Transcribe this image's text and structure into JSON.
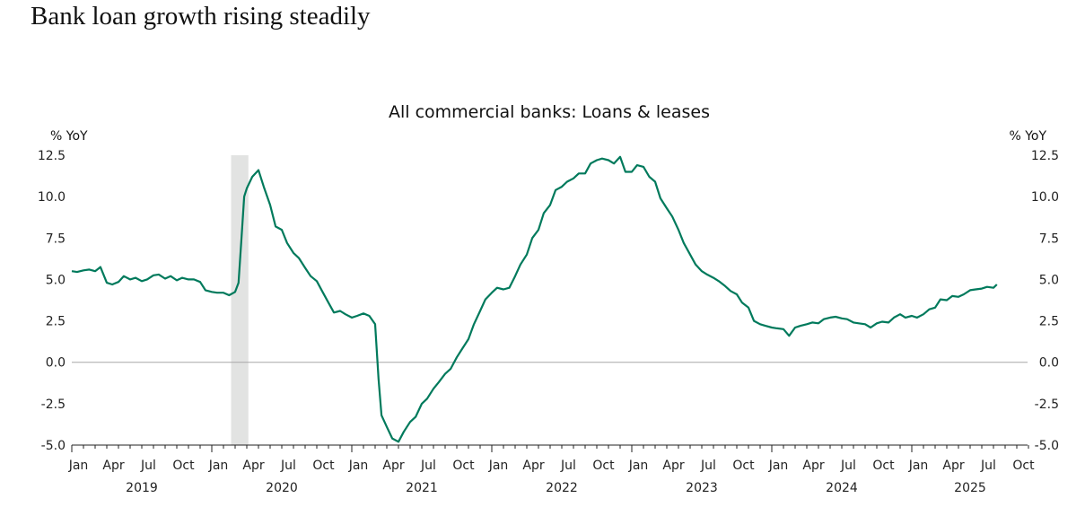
{
  "headline": "Bank loan growth rising steadily",
  "chart_data": {
    "type": "line",
    "title": "All commercial banks: Loans & leases",
    "ylabel_left": "% YoY",
    "ylabel_right": "% YoY",
    "ylim": [
      -5.0,
      12.5
    ],
    "yticks": [
      "12.5",
      "10.0",
      "7.5",
      "5.0",
      "2.5",
      "0.0",
      "-2.5",
      "-5.0"
    ],
    "xlim": [
      "2019-01-01",
      "2025-10-31"
    ],
    "month_labels": [
      "Jan",
      "Apr",
      "Jul",
      "Oct"
    ],
    "year_labels": [
      "2019",
      "2020",
      "2021",
      "2022",
      "2023",
      "2024",
      "2025"
    ],
    "grid": false,
    "zero_line": true,
    "line_color": "#007a5c",
    "shade_color": "#e2e3e2",
    "recession_shading": [
      "2020-02-20",
      "2020-04-05"
    ],
    "series": [
      {
        "points": [
          [
            "2019-01-01",
            5.5
          ],
          [
            "2019-01-15",
            5.45
          ],
          [
            "2019-02-01",
            5.55
          ],
          [
            "2019-02-15",
            5.6
          ],
          [
            "2019-03-01",
            5.5
          ],
          [
            "2019-03-15",
            5.75
          ],
          [
            "2019-04-01",
            4.8
          ],
          [
            "2019-04-15",
            4.7
          ],
          [
            "2019-05-01",
            4.85
          ],
          [
            "2019-05-15",
            5.2
          ],
          [
            "2019-06-01",
            5.0
          ],
          [
            "2019-06-15",
            5.1
          ],
          [
            "2019-07-01",
            4.9
          ],
          [
            "2019-07-15",
            5.0
          ],
          [
            "2019-08-01",
            5.25
          ],
          [
            "2019-08-15",
            5.3
          ],
          [
            "2019-09-01",
            5.05
          ],
          [
            "2019-09-15",
            5.2
          ],
          [
            "2019-10-01",
            4.95
          ],
          [
            "2019-10-15",
            5.1
          ],
          [
            "2019-11-01",
            5.0
          ],
          [
            "2019-11-15",
            5.0
          ],
          [
            "2019-12-01",
            4.85
          ],
          [
            "2019-12-15",
            4.35
          ],
          [
            "2020-01-01",
            4.25
          ],
          [
            "2020-01-15",
            4.2
          ],
          [
            "2020-02-01",
            4.2
          ],
          [
            "2020-02-15",
            4.05
          ],
          [
            "2020-03-01",
            4.25
          ],
          [
            "2020-03-10",
            4.8
          ],
          [
            "2020-03-18",
            7.5
          ],
          [
            "2020-03-25",
            10.0
          ],
          [
            "2020-04-01",
            10.5
          ],
          [
            "2020-04-15",
            11.2
          ],
          [
            "2020-05-01",
            11.6
          ],
          [
            "2020-05-15",
            10.6
          ],
          [
            "2020-06-01",
            9.5
          ],
          [
            "2020-06-15",
            8.2
          ],
          [
            "2020-07-01",
            8.0
          ],
          [
            "2020-07-15",
            7.2
          ],
          [
            "2020-08-01",
            6.6
          ],
          [
            "2020-08-15",
            6.3
          ],
          [
            "2020-09-01",
            5.7
          ],
          [
            "2020-09-15",
            5.2
          ],
          [
            "2020-10-01",
            4.9
          ],
          [
            "2020-10-15",
            4.3
          ],
          [
            "2020-11-01",
            3.6
          ],
          [
            "2020-11-15",
            3.0
          ],
          [
            "2020-12-01",
            3.1
          ],
          [
            "2020-12-15",
            2.9
          ],
          [
            "2021-01-01",
            2.7
          ],
          [
            "2021-01-15",
            2.8
          ],
          [
            "2021-02-01",
            2.95
          ],
          [
            "2021-02-15",
            2.8
          ],
          [
            "2021-03-01",
            2.3
          ],
          [
            "2021-03-10",
            -1.0
          ],
          [
            "2021-03-18",
            -3.2
          ],
          [
            "2021-04-01",
            -3.9
          ],
          [
            "2021-04-15",
            -4.6
          ],
          [
            "2021-05-01",
            -4.8
          ],
          [
            "2021-05-15",
            -4.2
          ],
          [
            "2021-06-01",
            -3.6
          ],
          [
            "2021-06-15",
            -3.3
          ],
          [
            "2021-07-01",
            -2.5
          ],
          [
            "2021-07-15",
            -2.2
          ],
          [
            "2021-08-01",
            -1.6
          ],
          [
            "2021-08-15",
            -1.2
          ],
          [
            "2021-09-01",
            -0.7
          ],
          [
            "2021-09-15",
            -0.4
          ],
          [
            "2021-10-01",
            0.3
          ],
          [
            "2021-10-15",
            0.8
          ],
          [
            "2021-11-01",
            1.4
          ],
          [
            "2021-11-15",
            2.3
          ],
          [
            "2021-12-01",
            3.1
          ],
          [
            "2021-12-15",
            3.8
          ],
          [
            "2022-01-01",
            4.2
          ],
          [
            "2022-01-15",
            4.5
          ],
          [
            "2022-02-01",
            4.4
          ],
          [
            "2022-02-15",
            4.5
          ],
          [
            "2022-03-01",
            5.2
          ],
          [
            "2022-03-15",
            5.9
          ],
          [
            "2022-04-01",
            6.5
          ],
          [
            "2022-04-15",
            7.5
          ],
          [
            "2022-05-01",
            8.0
          ],
          [
            "2022-05-15",
            9.0
          ],
          [
            "2022-06-01",
            9.5
          ],
          [
            "2022-06-15",
            10.4
          ],
          [
            "2022-07-01",
            10.6
          ],
          [
            "2022-07-15",
            10.9
          ],
          [
            "2022-08-01",
            11.1
          ],
          [
            "2022-08-15",
            11.4
          ],
          [
            "2022-09-01",
            11.4
          ],
          [
            "2022-09-15",
            12.0
          ],
          [
            "2022-10-01",
            12.2
          ],
          [
            "2022-10-15",
            12.3
          ],
          [
            "2022-11-01",
            12.2
          ],
          [
            "2022-11-15",
            12.0
          ],
          [
            "2022-12-01",
            12.4
          ],
          [
            "2022-12-15",
            11.5
          ],
          [
            "2023-01-01",
            11.5
          ],
          [
            "2023-01-15",
            11.9
          ],
          [
            "2023-02-01",
            11.8
          ],
          [
            "2023-02-15",
            11.2
          ],
          [
            "2023-03-01",
            10.9
          ],
          [
            "2023-03-15",
            9.9
          ],
          [
            "2023-04-01",
            9.3
          ],
          [
            "2023-04-15",
            8.8
          ],
          [
            "2023-05-01",
            8.0
          ],
          [
            "2023-05-15",
            7.2
          ],
          [
            "2023-06-01",
            6.5
          ],
          [
            "2023-06-15",
            5.9
          ],
          [
            "2023-07-01",
            5.5
          ],
          [
            "2023-07-15",
            5.3
          ],
          [
            "2023-08-01",
            5.1
          ],
          [
            "2023-08-15",
            4.9
          ],
          [
            "2023-09-01",
            4.6
          ],
          [
            "2023-09-15",
            4.3
          ],
          [
            "2023-10-01",
            4.1
          ],
          [
            "2023-10-15",
            3.6
          ],
          [
            "2023-11-01",
            3.3
          ],
          [
            "2023-11-15",
            2.5
          ],
          [
            "2023-12-01",
            2.3
          ],
          [
            "2023-12-15",
            2.2
          ],
          [
            "2024-01-01",
            2.1
          ],
          [
            "2024-01-15",
            2.05
          ],
          [
            "2024-02-01",
            2.0
          ],
          [
            "2024-02-15",
            1.6
          ],
          [
            "2024-03-01",
            2.1
          ],
          [
            "2024-03-15",
            2.2
          ],
          [
            "2024-04-01",
            2.3
          ],
          [
            "2024-04-15",
            2.4
          ],
          [
            "2024-05-01",
            2.35
          ],
          [
            "2024-05-15",
            2.6
          ],
          [
            "2024-06-01",
            2.7
          ],
          [
            "2024-06-15",
            2.75
          ],
          [
            "2024-07-01",
            2.65
          ],
          [
            "2024-07-15",
            2.6
          ],
          [
            "2024-08-01",
            2.4
          ],
          [
            "2024-08-15",
            2.35
          ],
          [
            "2024-09-01",
            2.3
          ],
          [
            "2024-09-15",
            2.1
          ],
          [
            "2024-10-01",
            2.35
          ],
          [
            "2024-10-15",
            2.45
          ],
          [
            "2024-11-01",
            2.4
          ],
          [
            "2024-11-15",
            2.7
          ],
          [
            "2024-12-01",
            2.9
          ],
          [
            "2024-12-15",
            2.7
          ],
          [
            "2025-01-01",
            2.8
          ],
          [
            "2025-01-15",
            2.7
          ],
          [
            "2025-02-01",
            2.9
          ],
          [
            "2025-02-15",
            3.2
          ],
          [
            "2025-03-01",
            3.3
          ],
          [
            "2025-03-15",
            3.8
          ],
          [
            "2025-04-01",
            3.75
          ],
          [
            "2025-04-15",
            4.0
          ],
          [
            "2025-05-01",
            3.95
          ],
          [
            "2025-05-15",
            4.1
          ],
          [
            "2025-06-01",
            4.35
          ],
          [
            "2025-06-15",
            4.4
          ],
          [
            "2025-07-01",
            4.45
          ],
          [
            "2025-07-15",
            4.55
          ],
          [
            "2025-08-01",
            4.5
          ],
          [
            "2025-08-10",
            4.7
          ]
        ]
      }
    ]
  }
}
